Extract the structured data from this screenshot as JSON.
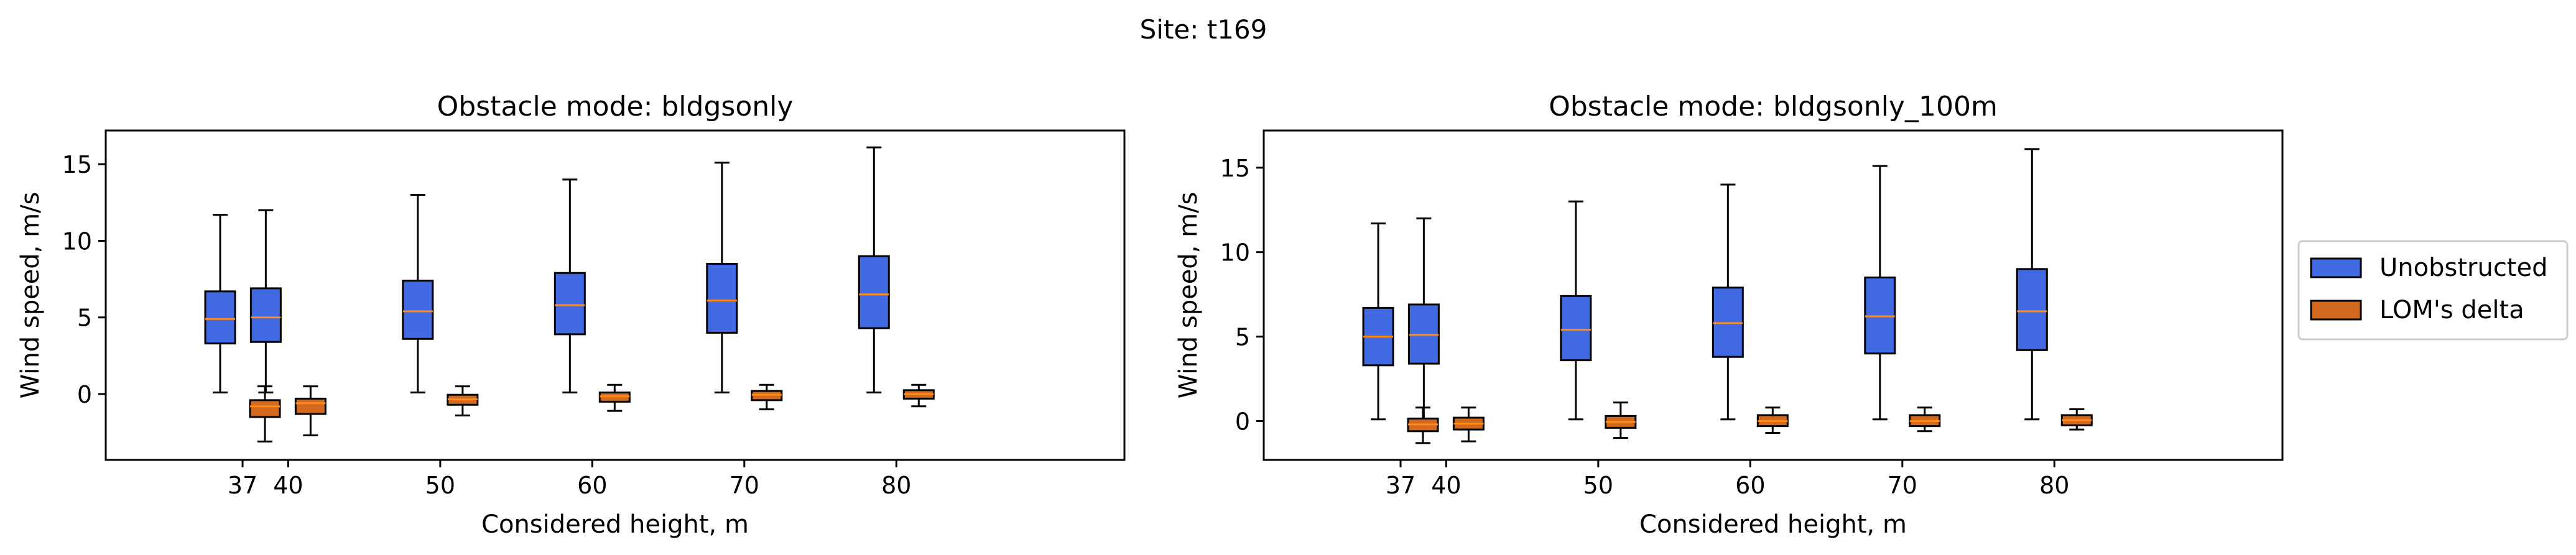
{
  "suptitle": "Site: t169",
  "legend": {
    "placement": "right-center",
    "entries": [
      {
        "label": "Unobstructed",
        "color": "#4169e1"
      },
      {
        "label": "LOM's delta",
        "color": "#d2691e"
      }
    ]
  },
  "chart_data": [
    {
      "type": "box",
      "title": "Obstacle mode: bldgsonly",
      "xlabel": "Considered height, m",
      "ylabel": "Wind speed, m/s",
      "xlim": [
        28,
        95
      ],
      "ylim": [
        -4.3,
        17.2
      ],
      "yticks": [
        0,
        5,
        10,
        15
      ],
      "xticks": [
        37,
        40,
        50,
        60,
        70,
        80
      ],
      "grid": false,
      "series": [
        {
          "name": "Unobstructed",
          "color": "#4169e1",
          "boxes": [
            {
              "x": 37,
              "whislo": 0.1,
              "q1": 3.3,
              "med": 4.9,
              "q3": 6.7,
              "whishi": 11.7
            },
            {
              "x": 40,
              "whislo": 0.1,
              "q1": 3.4,
              "med": 5.0,
              "q3": 6.9,
              "whishi": 12.0
            },
            {
              "x": 50,
              "whislo": 0.1,
              "q1": 3.6,
              "med": 5.4,
              "q3": 7.4,
              "whishi": 13.0
            },
            {
              "x": 60,
              "whislo": 0.1,
              "q1": 3.9,
              "med": 5.8,
              "q3": 7.9,
              "whishi": 14.0
            },
            {
              "x": 70,
              "whislo": 0.1,
              "q1": 4.0,
              "med": 6.1,
              "q3": 8.5,
              "whishi": 15.1
            },
            {
              "x": 80,
              "whislo": 0.1,
              "q1": 4.3,
              "med": 6.5,
              "q3": 9.0,
              "whishi": 16.1
            }
          ]
        },
        {
          "name": "LOM's delta",
          "color": "#d2691e",
          "boxes": [
            {
              "x": 37,
              "whislo": -3.1,
              "q1": -1.5,
              "med": -0.8,
              "q3": -0.4,
              "whishi": 0.5
            },
            {
              "x": 40,
              "whislo": -2.7,
              "q1": -1.3,
              "med": -0.6,
              "q3": -0.3,
              "whishi": 0.5
            },
            {
              "x": 50,
              "whislo": -1.4,
              "q1": -0.7,
              "med": -0.35,
              "q3": -0.05,
              "whishi": 0.5
            },
            {
              "x": 60,
              "whislo": -1.1,
              "q1": -0.5,
              "med": -0.15,
              "q3": 0.1,
              "whishi": 0.6
            },
            {
              "x": 70,
              "whislo": -1.0,
              "q1": -0.4,
              "med": -0.05,
              "q3": 0.2,
              "whishi": 0.6
            },
            {
              "x": 80,
              "whislo": -0.8,
              "q1": -0.3,
              "med": 0.0,
              "q3": 0.25,
              "whishi": 0.6
            }
          ]
        }
      ]
    },
    {
      "type": "box",
      "title": "Obstacle mode: bldgsonly_100m",
      "xlabel": "Considered height, m",
      "ylabel": "Wind speed, m/s",
      "xlim": [
        28,
        95
      ],
      "ylim": [
        -2.3,
        17.2
      ],
      "yticks": [
        0,
        5,
        10,
        15
      ],
      "xticks": [
        37,
        40,
        50,
        60,
        70,
        80
      ],
      "grid": false,
      "series": [
        {
          "name": "Unobstructed",
          "color": "#4169e1",
          "boxes": [
            {
              "x": 37,
              "whislo": 0.1,
              "q1": 3.3,
              "med": 5.0,
              "q3": 6.7,
              "whishi": 11.7
            },
            {
              "x": 40,
              "whislo": 0.1,
              "q1": 3.4,
              "med": 5.1,
              "q3": 6.9,
              "whishi": 12.0
            },
            {
              "x": 50,
              "whislo": 0.1,
              "q1": 3.6,
              "med": 5.4,
              "q3": 7.4,
              "whishi": 13.0
            },
            {
              "x": 60,
              "whislo": 0.1,
              "q1": 3.8,
              "med": 5.8,
              "q3": 7.9,
              "whishi": 14.0
            },
            {
              "x": 70,
              "whislo": 0.1,
              "q1": 4.0,
              "med": 6.2,
              "q3": 8.5,
              "whishi": 15.1
            },
            {
              "x": 80,
              "whislo": 0.1,
              "q1": 4.2,
              "med": 6.5,
              "q3": 9.0,
              "whishi": 16.1
            }
          ]
        },
        {
          "name": "LOM's delta",
          "color": "#d2691e",
          "boxes": [
            {
              "x": 37,
              "whislo": -1.3,
              "q1": -0.6,
              "med": -0.2,
              "q3": 0.15,
              "whishi": 0.8
            },
            {
              "x": 40,
              "whislo": -1.2,
              "q1": -0.5,
              "med": -0.15,
              "q3": 0.2,
              "whishi": 0.8
            },
            {
              "x": 50,
              "whislo": -1.0,
              "q1": -0.4,
              "med": -0.05,
              "q3": 0.3,
              "whishi": 1.1
            },
            {
              "x": 60,
              "whislo": -0.7,
              "q1": -0.3,
              "med": 0.0,
              "q3": 0.35,
              "whishi": 0.8
            },
            {
              "x": 70,
              "whislo": -0.6,
              "q1": -0.3,
              "med": 0.0,
              "q3": 0.35,
              "whishi": 0.8
            },
            {
              "x": 80,
              "whislo": -0.5,
              "q1": -0.25,
              "med": 0.05,
              "q3": 0.35,
              "whishi": 0.7
            }
          ]
        }
      ]
    }
  ]
}
